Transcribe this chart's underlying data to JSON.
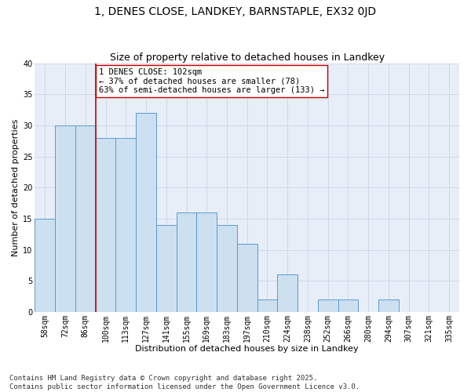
{
  "title": "1, DENES CLOSE, LANDKEY, BARNSTAPLE, EX32 0JD",
  "subtitle": "Size of property relative to detached houses in Landkey",
  "xlabel": "Distribution of detached houses by size in Landkey",
  "ylabel": "Number of detached properties",
  "categories": [
    "58sqm",
    "72sqm",
    "86sqm",
    "100sqm",
    "113sqm",
    "127sqm",
    "141sqm",
    "155sqm",
    "169sqm",
    "183sqm",
    "197sqm",
    "210sqm",
    "224sqm",
    "238sqm",
    "252sqm",
    "266sqm",
    "280sqm",
    "294sqm",
    "307sqm",
    "321sqm",
    "335sqm"
  ],
  "bar_values": [
    15,
    30,
    30,
    28,
    28,
    32,
    14,
    16,
    16,
    14,
    11,
    2,
    6,
    0,
    2,
    2,
    0,
    2,
    0,
    0,
    0
  ],
  "bar_color": "#cce0f0",
  "bar_edge_color": "#5b9bd5",
  "grid_color": "#c8d4e8",
  "background_color": "#e8eef8",
  "vline_color": "#cc0000",
  "vline_pos": 2.5,
  "annotation_text": "1 DENES CLOSE: 102sqm\n← 37% of detached houses are smaller (78)\n63% of semi-detached houses are larger (133) →",
  "annotation_box_color": "#ffffff",
  "annotation_box_edge": "#cc0000",
  "ylim": [
    0,
    40
  ],
  "yticks": [
    0,
    5,
    10,
    15,
    20,
    25,
    30,
    35,
    40
  ],
  "footer": "Contains HM Land Registry data © Crown copyright and database right 2025.\nContains public sector information licensed under the Open Government Licence v3.0.",
  "title_fontsize": 10,
  "subtitle_fontsize": 9,
  "axis_label_fontsize": 8,
  "tick_fontsize": 7,
  "footer_fontsize": 6.5,
  "annotation_fontsize": 7.5
}
